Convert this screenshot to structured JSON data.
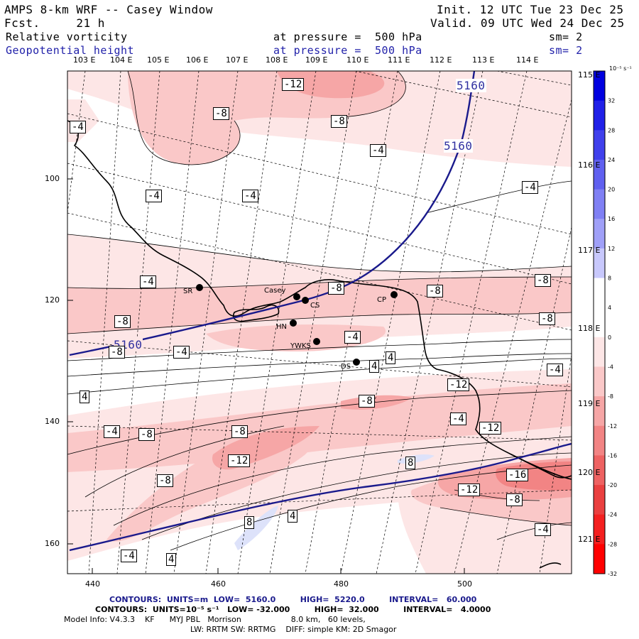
{
  "header": {
    "title": "AMPS 8-km WRF -- Casey Window",
    "forecast": "Fcst.     21 h",
    "init": "Init. 12 UTC Tue 23 Dec 25",
    "valid": "Valid. 09 UTC Wed 24 Dec 25",
    "field1_name": "Relative vorticity",
    "field1_level": "at pressure =  500 hPa",
    "field1_sm": "sm= 2",
    "field2_name": "Geopotential height",
    "field2_level": "at pressure =  500 hPa",
    "field2_sm": "sm= 2"
  },
  "footer": {
    "contours_height": "CONTOURS:  UNITS=m  LOW=  5160.0         HIGH=  5220.0         INTERVAL=   60.000",
    "contours_vort": "CONTOURS:  UNITS=10⁻⁵ s⁻¹   LOW= -32.000         HIGH=  32.000         INTERVAL=   4.0000",
    "model_info": "Model Info: V4.3.3    KF      MYJ PBL   Morrison                    8.0 km,   60 levels,",
    "model_info2": "LW: RRTM SW: RRTMG    DIFF: simple KM: 2D Smagor"
  },
  "chart_data": {
    "type": "heatmap",
    "title": "Relative vorticity / Geopotential height at 500 hPa",
    "x_ticks": [
      "440",
      "460",
      "480",
      "500"
    ],
    "y_ticks": [
      "100",
      "120",
      "140",
      "160"
    ],
    "lon_top_labels": [
      "103 E",
      "104 E",
      "105 E",
      "106 E",
      "107 E",
      "108 E",
      "109 E",
      "110 E",
      "111 E",
      "112 E",
      "113 E",
      "114 E"
    ],
    "lon_right_labels": [
      "115 E",
      "116 E",
      "117 E",
      "118 E",
      "119 E",
      "120 E",
      "121 E"
    ],
    "colorbar": {
      "units": "10⁻⁵ s⁻¹",
      "labels": [
        "32",
        "28",
        "24",
        "20",
        "16",
        "12",
        "8",
        "4",
        "0",
        "-4",
        "-8",
        "-12",
        "-16",
        "-20",
        "-24",
        "-28",
        "-32"
      ],
      "colors": [
        "#0000e0",
        "#2020e8",
        "#4040ec",
        "#6060f0",
        "#8080f4",
        "#a0a0f8",
        "#c8c8fc",
        "#ffffff",
        "#ffffff",
        "#fde6e6",
        "#fac8c8",
        "#f6a6a6",
        "#f28484",
        "#ee6262",
        "#ea4040",
        "#f42020",
        "#ff0000"
      ]
    },
    "height_contours": [
      {
        "value": "5160",
        "label": "5160"
      },
      {
        "value": "5160",
        "label": "5160"
      },
      {
        "value": "5160",
        "label": "5160"
      }
    ],
    "vorticity_labels": [
      "-12",
      "-8",
      "-8",
      "-4",
      "-4",
      "-4",
      "-4",
      "-4",
      "-4",
      "-8",
      "-8",
      "-8",
      "-8",
      "-8",
      "-4",
      "4",
      "4",
      "-4",
      "-8",
      "-12",
      "-8",
      "-4",
      "4",
      "-4",
      "-8",
      "-12",
      "-4",
      "-12",
      "-8",
      "-8",
      "-16",
      "-12",
      "-8",
      "-4",
      "8",
      "4",
      "8",
      "-4",
      "4"
    ],
    "stations": [
      {
        "name": "SR"
      },
      {
        "name": "Casey"
      },
      {
        "name": "CS"
      },
      {
        "name": "HN"
      },
      {
        "name": "YWKS"
      },
      {
        "name": "DS"
      },
      {
        "name": "CP"
      }
    ]
  }
}
